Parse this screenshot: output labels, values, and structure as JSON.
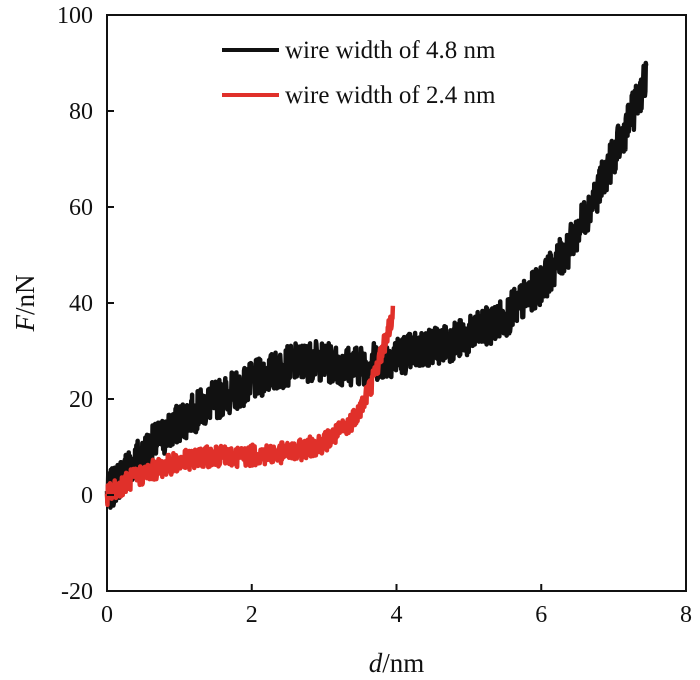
{
  "chart_data": {
    "type": "line",
    "xlabel_var": "d",
    "xlabel_unit": "/nm",
    "ylabel_var": "F",
    "ylabel_unit": "/nN",
    "xlim": [
      0,
      8
    ],
    "ylim": [
      -20,
      100
    ],
    "xticks": [
      0,
      2,
      4,
      6,
      8
    ],
    "yticks": [
      -20,
      0,
      20,
      40,
      60,
      80,
      100
    ],
    "xtick_labels": [
      "0",
      "2",
      "4",
      "6",
      "8"
    ],
    "ytick_labels": [
      "-20",
      "0",
      "20",
      "40",
      "60",
      "80",
      "100"
    ],
    "grid": false,
    "legend_position": "top-right",
    "series": [
      {
        "name": "wire width of 4.8 nm",
        "color": "#111111",
        "x": [
          0,
          0.3,
          0.6,
          1.0,
          1.4,
          1.8,
          2.2,
          2.6,
          2.9,
          3.2,
          3.5,
          4.0,
          4.5,
          5.0,
          5.5,
          6.0,
          6.4,
          6.8,
          7.1,
          7.3,
          7.45
        ],
        "y": [
          0,
          6,
          10,
          15,
          19,
          22,
          25,
          27.5,
          28,
          27,
          27,
          29,
          31,
          33,
          37,
          44,
          52,
          64,
          74,
          81,
          87
        ]
      },
      {
        "name": "wire width of 2.4 nm",
        "color": "#e0302a",
        "x": [
          0,
          0.3,
          0.6,
          1.0,
          1.4,
          1.8,
          2.2,
          2.6,
          3.0,
          3.3,
          3.5,
          3.65,
          3.8,
          3.9,
          3.95
        ],
        "y": [
          0,
          3,
          5,
          7,
          8,
          8,
          8.5,
          9,
          11,
          14,
          18,
          23,
          30,
          35,
          37.5
        ]
      }
    ]
  }
}
